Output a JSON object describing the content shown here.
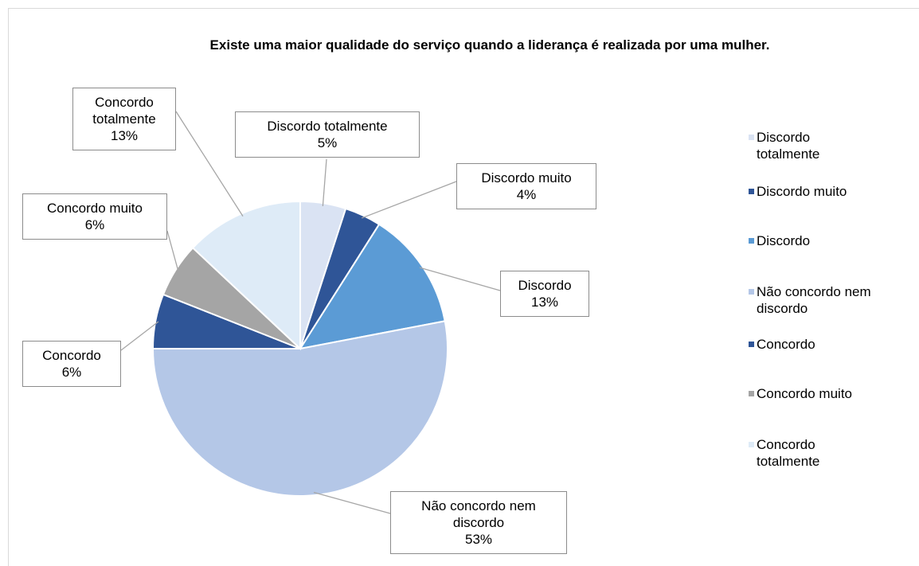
{
  "chart_data": {
    "type": "pie",
    "title": "Existe uma maior qualidade do serviço quando a liderança é realizada por uma mulher.",
    "categories": [
      "Discordo totalmente",
      "Discordo muito",
      "Discordo",
      "Não concordo nem discordo",
      "Concordo",
      "Concordo muito",
      "Concordo totalmente"
    ],
    "values": [
      5,
      4,
      13,
      53,
      6,
      6,
      13
    ],
    "value_labels": [
      "5%",
      "4%",
      "13%",
      "53%",
      "6%",
      "6%",
      "13%"
    ],
    "colors": [
      "#dae3f3",
      "#2f5597",
      "#5b9bd5",
      "#b4c7e7",
      "#2f5597",
      "#a5a5a5",
      "#deebf7"
    ],
    "legend": "right"
  }
}
